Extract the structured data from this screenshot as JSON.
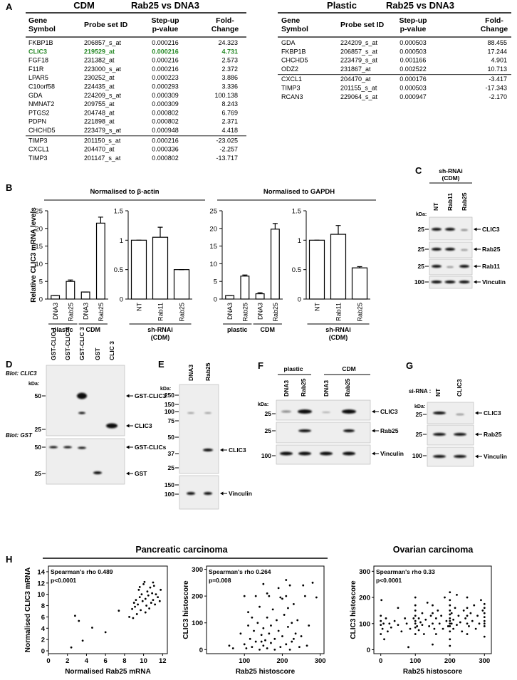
{
  "panel_labels": [
    "A",
    "B",
    "C",
    "D",
    "E",
    "F",
    "G",
    "H"
  ],
  "tables": [
    {
      "title": "CDM",
      "subtitle": "Rab25 vs DNA3",
      "columns": [
        [
          "Gene",
          "Symbol"
        ],
        [
          "Probe set ID"
        ],
        [
          "Step-up",
          "p-value"
        ],
        [
          "Fold-",
          "Change"
        ]
      ],
      "up_rows": [
        [
          "FKBP1B",
          "206857_s_at",
          "0.000216",
          "24.323"
        ],
        [
          "CLIC3",
          "219529_at",
          "0.000216",
          "4.731"
        ],
        [
          "FGF18",
          "231382_at",
          "0.000216",
          "2.573"
        ],
        [
          "F11R",
          "223000_s_at",
          "0.000216",
          "2.372"
        ],
        [
          "LPAR5",
          "230252_at",
          "0.000223",
          "3.886"
        ],
        [
          "C10orf58",
          "224435_at",
          "0.000293",
          "3.336"
        ],
        [
          "GDA",
          "224209_s_at",
          "0.000309",
          "100.138"
        ],
        [
          "NMNAT2",
          "209755_at",
          "0.000309",
          "8.243"
        ],
        [
          "PTGS2",
          "204748_at",
          "0.000802",
          "6.769"
        ],
        [
          "PDPN",
          "221898_at",
          "0.000802",
          "2.371"
        ],
        [
          "CHCHD5",
          "223479_s_at",
          "0.000948",
          "4.418"
        ]
      ],
      "down_rows": [
        [
          "TIMP3",
          "201150_s_at",
          "0.000216",
          "-23.025"
        ],
        [
          "CXCL1",
          "204470_at",
          "0.000336",
          "-2.257"
        ],
        [
          "TIMP3",
          "201147_s_at",
          "0.000802",
          "-13.717"
        ]
      ],
      "highlight": {
        "row": 1,
        "color": "#2a8c2a"
      }
    },
    {
      "title": "Plastic",
      "subtitle": "Rab25 vs DNA3",
      "columns": [
        [
          "Gene",
          "Symbol"
        ],
        [
          "Probe set ID"
        ],
        [
          "Step-up",
          "p-value"
        ],
        [
          "Fold-",
          "Change"
        ]
      ],
      "up_rows": [
        [
          "GDA",
          "224209_s_at",
          "0.000503",
          "88.455"
        ],
        [
          "FKBP1B",
          "206857_s_at",
          "0.000503",
          "17.244"
        ],
        [
          "CHCHD5",
          "223479_s_at",
          "0.001166",
          "4.901"
        ],
        [
          "ODZ2",
          "231867_at",
          "0.002522",
          "10.713"
        ]
      ],
      "down_rows": [
        [
          "CXCL1",
          "204470_at",
          "0.000176",
          "-3.417"
        ],
        [
          "TIMP3",
          "201155_s_at",
          "0.000503",
          "-17.343"
        ],
        [
          "RCAN3",
          "229064_s_at",
          "0.000947",
          "-2.170"
        ]
      ]
    }
  ],
  "panel_b": {
    "headers": [
      "Normalised to β-actin",
      "Normalised to GAPDH"
    ],
    "ylabel": "Relative CLIC3 mRNA levels"
  },
  "chart_data": [
    {
      "type": "bar",
      "color": "#ffffff",
      "edgecolor": "#000000",
      "groups": [
        {
          "label": [
            "plastic"
          ],
          "categories": [
            "DNA3",
            "Rab25"
          ]
        },
        {
          "label": [
            "CDM"
          ],
          "categories": [
            "DNA3",
            "Rab25"
          ]
        }
      ],
      "values": [
        1,
        5,
        2,
        21.5
      ],
      "errors": [
        0,
        0.4,
        0,
        1.7
      ],
      "ylim": [
        0,
        25
      ],
      "yticks": [
        0,
        5,
        10,
        15,
        20,
        25
      ]
    },
    {
      "type": "bar",
      "color": "#ffffff",
      "edgecolor": "#000000",
      "groups": [
        {
          "label": [
            "sh-RNAi",
            "(CDM)"
          ],
          "categories": [
            "NT",
            "Rab11",
            "Rab25"
          ]
        }
      ],
      "values": [
        1,
        1.05,
        0.5
      ],
      "errors": [
        0,
        0.17,
        0
      ],
      "ylim": [
        0,
        1.5
      ],
      "yticks": [
        0,
        0.5,
        1,
        1.5
      ]
    },
    {
      "type": "bar",
      "color": "#ffffff",
      "edgecolor": "#000000",
      "groups": [
        {
          "label": [
            "plastic"
          ],
          "categories": [
            "DNA3",
            "Rab25"
          ]
        },
        {
          "label": [
            "CDM"
          ],
          "categories": [
            "DNA3",
            "Rab25"
          ]
        }
      ],
      "values": [
        1,
        6.5,
        1.5,
        19.8
      ],
      "errors": [
        0,
        0.3,
        0.3,
        1.6
      ],
      "ylim": [
        0,
        25
      ],
      "yticks": [
        0,
        5,
        10,
        15,
        20,
        25
      ]
    },
    {
      "type": "bar",
      "color": "#ffffff",
      "edgecolor": "#000000",
      "groups": [
        {
          "label": [
            "sh-RNAi",
            "(CDM)"
          ],
          "categories": [
            "NT",
            "Rab11",
            "Rab25"
          ]
        }
      ],
      "values": [
        1,
        1.1,
        0.53
      ],
      "errors": [
        0,
        0.15,
        0.02
      ],
      "ylim": [
        0,
        1.5
      ],
      "yticks": [
        0,
        0.5,
        1,
        1.5
      ]
    },
    {
      "type": "scatter",
      "color": "#000000",
      "title": "Pancreatic carcinoma",
      "xlabel": "Normalised Rab25 mRNA",
      "ylabel": "Normalised CLIC3 mRNA",
      "annotations": [
        "Spearman's rho 0.489",
        "p<0.0001"
      ],
      "xlim": [
        0,
        12.5
      ],
      "xticks": [
        0,
        2,
        4,
        6,
        8,
        10,
        12
      ],
      "ylim": [
        -0.5,
        15
      ],
      "yticks": [
        0,
        2,
        4,
        6,
        8,
        10,
        12,
        14
      ],
      "x": [
        2.4,
        2.8,
        3.2,
        3.6,
        4.6,
        6.0,
        7.4,
        8.5,
        8.8,
        8.9,
        9.0,
        9.1,
        9.2,
        9.3,
        9.4,
        9.5,
        9.6,
        9.7,
        9.8,
        9.9,
        10.0,
        10.1,
        10.2,
        10.3,
        10.4,
        10.5,
        10.6,
        10.7,
        10.8,
        10.9,
        11.0,
        11.1,
        11.2,
        11.3,
        11.5,
        11.7,
        11.8,
        9.6,
        10.2,
        11.0
      ],
      "y": [
        0.6,
        6.2,
        5.3,
        1.8,
        4.1,
        3.3,
        7.1,
        6.0,
        7.4,
        5.8,
        8.5,
        7.8,
        9.0,
        6.5,
        8.2,
        10.8,
        9.5,
        7.2,
        10.0,
        8.8,
        11.8,
        12.2,
        9.2,
        8.0,
        10.5,
        9.8,
        7.5,
        11.2,
        8.5,
        10.2,
        9.0,
        11.5,
        8.2,
        10.0,
        9.5,
        8.8,
        10.8,
        11.3,
        6.8,
        12.1
      ]
    },
    {
      "type": "scatter",
      "color": "#000000",
      "xlabel": "Rab25 histoscore",
      "ylabel": "CLIC3 histoscore",
      "annotations": [
        "Spearman's rho 0.264",
        "p=0.008"
      ],
      "xlim": [
        0,
        310
      ],
      "xticks": [
        100,
        200,
        300
      ],
      "ylim": [
        -15,
        312
      ],
      "yticks": [
        0,
        100,
        200,
        300
      ],
      "x": [
        60,
        70,
        90,
        100,
        100,
        105,
        110,
        110,
        115,
        120,
        120,
        125,
        130,
        130,
        135,
        140,
        140,
        145,
        150,
        150,
        150,
        155,
        160,
        160,
        165,
        165,
        170,
        170,
        175,
        180,
        180,
        185,
        190,
        190,
        195,
        200,
        200,
        205,
        210,
        210,
        215,
        220,
        220,
        225,
        225,
        230,
        235,
        240,
        245,
        250,
        255,
        260,
        265,
        270,
        280,
        290,
        210,
        230,
        160,
        145,
        195,
        215
      ],
      "y": [
        15,
        5,
        60,
        20,
        200,
        5,
        90,
        140,
        40,
        10,
        120,
        70,
        200,
        30,
        100,
        0,
        160,
        55,
        15,
        80,
        245,
        35,
        120,
        5,
        200,
        60,
        25,
        90,
        150,
        0,
        40,
        110,
        70,
        230,
        10,
        190,
        50,
        130,
        20,
        200,
        85,
        240,
        0,
        100,
        30,
        170,
        60,
        110,
        10,
        50,
        240,
        200,
        15,
        90,
        250,
        195,
        260,
        40,
        210,
        30,
        195,
        155
      ]
    },
    {
      "type": "scatter",
      "color": "#000000",
      "title": "Ovarian carcinoma",
      "xlabel": "Rab25 histoscore",
      "ylabel": "CLIC3 histoscore",
      "annotations": [
        "Spearman's rho 0.33",
        "p<0.0001"
      ],
      "xlim": [
        -20,
        320
      ],
      "xticks": [
        0,
        100,
        200,
        300
      ],
      "ylim": [
        -15,
        320
      ],
      "yticks": [
        0,
        100,
        200,
        300
      ],
      "x": [
        0,
        0,
        0,
        0,
        2,
        5,
        8,
        10,
        15,
        20,
        25,
        30,
        40,
        50,
        50,
        60,
        70,
        75,
        80,
        85,
        95,
        100,
        100,
        100,
        100,
        100,
        100,
        100,
        100,
        105,
        110,
        110,
        115,
        120,
        120,
        125,
        130,
        135,
        140,
        145,
        150,
        150,
        150,
        150,
        155,
        160,
        160,
        165,
        170,
        175,
        180,
        185,
        190,
        195,
        200,
        200,
        200,
        200,
        200,
        200,
        200,
        200,
        200,
        200,
        200,
        200,
        205,
        205,
        210,
        210,
        215,
        220,
        220,
        225,
        230,
        235,
        240,
        245,
        250,
        250,
        250,
        250,
        250,
        255,
        260,
        265,
        270,
        275,
        280,
        285,
        290,
        295,
        300,
        300,
        300,
        300,
        300,
        300,
        300,
        300
      ],
      "y": [
        60,
        95,
        110,
        130,
        190,
        80,
        100,
        40,
        120,
        70,
        100,
        85,
        110,
        95,
        160,
        70,
        120,
        100,
        10,
        80,
        120,
        60,
        85,
        100,
        110,
        130,
        150,
        170,
        200,
        90,
        120,
        75,
        105,
        140,
        95,
        60,
        115,
        180,
        90,
        130,
        20,
        100,
        140,
        170,
        80,
        120,
        60,
        150,
        100,
        130,
        80,
        200,
        110,
        90,
        15,
        40,
        70,
        90,
        100,
        110,
        120,
        135,
        150,
        170,
        190,
        220,
        100,
        140,
        80,
        115,
        160,
        95,
        210,
        130,
        105,
        70,
        150,
        120,
        60,
        100,
        130,
        160,
        200,
        90,
        140,
        110,
        170,
        80,
        130,
        100,
        190,
        150,
        50,
        90,
        110,
        125,
        140,
        160,
        175,
        100
      ]
    }
  ],
  "blots": {
    "C": {
      "header": [
        "sh-RNAi",
        "(CDM)"
      ],
      "lanes": [
        "NT",
        "Rab11",
        "Rab25"
      ],
      "kda_label": "kDa:",
      "markers": [
        25,
        25,
        25,
        100
      ],
      "targets": [
        "CLIC3",
        "Rab25",
        "Rab11",
        "Vinculin"
      ]
    },
    "D": {
      "lanes": [
        "GST-CLIC 1",
        "GST-CLIC 4",
        "GST-CLIC 3",
        "GST",
        "CLIC 3"
      ],
      "blot_labels": [
        "Blot: CLIC3",
        "Blot: GST"
      ],
      "kda_label": "kDa:",
      "markers": [
        50,
        25,
        50,
        25
      ],
      "targets": [
        "GST-CLIC3",
        "CLIC3",
        "GST-CLICs",
        "GST"
      ]
    },
    "E": {
      "lanes": [
        "DNA3",
        "Rab25"
      ],
      "kda_label": "kDa:",
      "markers": [
        250,
        150,
        100,
        75,
        50,
        37,
        25,
        150,
        100
      ],
      "targets": [
        "CLIC3",
        "Vinculin"
      ]
    },
    "F": {
      "groups": [
        "plastic",
        "CDM"
      ],
      "lanes": [
        "DNA3",
        "Rab25",
        "DNA3",
        "Rab25"
      ],
      "kda_label": "kDa:",
      "markers": [
        25,
        25,
        100
      ],
      "targets": [
        "CLIC3",
        "Rab25",
        "Vinculin"
      ]
    },
    "G": {
      "si_label": "si-RNA :",
      "lanes": [
        "NT",
        "CLIC3"
      ],
      "kda_label": "kDa:",
      "markers": [
        25,
        25,
        100
      ],
      "targets": [
        "CLIC3",
        "Rab25",
        "Vinculin"
      ]
    }
  }
}
